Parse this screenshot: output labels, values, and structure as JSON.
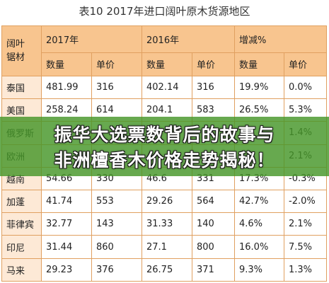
{
  "title": "表10 2017年进口阔叶原木货源地区",
  "header": {
    "corner": "阔叶\n锯材",
    "years": [
      "2017年",
      "2016年",
      "增减%"
    ],
    "subcols": [
      "数量",
      "单价",
      "数量",
      "单价",
      "数量",
      "单价"
    ]
  },
  "rows": [
    {
      "name": "泰国",
      "cells": [
        "481.99",
        "316",
        "402.14",
        "316",
        "19.9%",
        "0.0%"
      ]
    },
    {
      "name": "美国",
      "cells": [
        "258.24",
        "614",
        "204.1",
        "583",
        "26.5%",
        "5.3%"
      ]
    },
    {
      "name": "俄罗斯",
      "cells": [
        "",
        "",
        "",
        "",
        "",
        "1.4%"
      ]
    },
    {
      "name": "欧洲",
      "cells": [
        "",
        "",
        "",
        "",
        "",
        "2.1%"
      ]
    },
    {
      "name": "越南",
      "cells": [
        "54.66",
        "330",
        "46.6",
        "331",
        "17.3%",
        "-0.3%"
      ]
    },
    {
      "name": "加蓬",
      "cells": [
        "41.74",
        "553",
        "29.26",
        "564",
        "42.7%",
        "-2.0%"
      ]
    },
    {
      "name": "菲律宾",
      "cells": [
        "32.77",
        "143",
        "31.33",
        "140",
        "4.6%",
        "2.1%"
      ]
    },
    {
      "name": "印尼",
      "cells": [
        "31.44",
        "860",
        "27.1",
        "800",
        "16.0%",
        "7.5%"
      ]
    },
    {
      "name": "马来",
      "cells": [
        "29.23",
        "376",
        "26.75",
        "371",
        "9.3%",
        "1.3%"
      ]
    }
  ],
  "banner": {
    "line1": "振华大选票数背后的故事与",
    "line2": "非洲檀香木价格走势揭秘！"
  }
}
